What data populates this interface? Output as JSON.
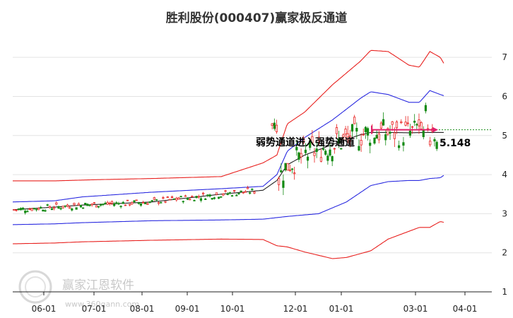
{
  "chart_data": {
    "type": "candlestick",
    "title": "胜利股份(000407)赢家极反通道",
    "x_labels": [
      "06-01",
      "07-01",
      "08-01",
      "09-01",
      "10-01",
      "12-01",
      "01-01",
      "03-01",
      "04-01"
    ],
    "y_ticks": [
      1,
      2,
      3,
      4,
      5,
      6,
      7
    ],
    "ylim": [
      1,
      7.6
    ],
    "grid": "horizontal",
    "annotation": "弱势通道进入强势通道",
    "price_label": "5.148",
    "reference_price": 5.148,
    "colors": {
      "upper_band": "#e8201e",
      "middle_upper_band": "#2a2ae0",
      "center_line": "#222222",
      "middle_lower_band": "#2a2ae0",
      "lower_band": "#e8201e",
      "up_candle": "#e8201e",
      "down_candle": "#138a13",
      "reference_line": "#1a8f1a",
      "annotation_arrow": "#e0206a"
    },
    "series": [
      {
        "key": "upper",
        "points": [
          [
            0,
            3.84
          ],
          [
            60,
            3.84
          ],
          [
            120,
            3.87
          ],
          [
            200,
            3.9
          ],
          [
            300,
            3.95
          ],
          [
            360,
            4.3
          ],
          [
            380,
            4.5
          ],
          [
            395,
            5.3
          ],
          [
            420,
            5.6
          ],
          [
            460,
            6.3
          ],
          [
            500,
            6.9
          ],
          [
            515,
            7.18
          ],
          [
            540,
            7.15
          ],
          [
            570,
            6.8
          ],
          [
            585,
            6.75
          ],
          [
            600,
            7.15
          ],
          [
            615,
            7.0
          ],
          [
            620,
            6.85
          ]
        ]
      },
      {
        "key": "mid_upper",
        "points": [
          [
            0,
            3.3
          ],
          [
            60,
            3.33
          ],
          [
            100,
            3.43
          ],
          [
            200,
            3.55
          ],
          [
            300,
            3.64
          ],
          [
            360,
            3.7
          ],
          [
            380,
            4.0
          ],
          [
            395,
            4.6
          ],
          [
            420,
            4.95
          ],
          [
            460,
            5.4
          ],
          [
            500,
            5.95
          ],
          [
            515,
            6.12
          ],
          [
            540,
            6.05
          ],
          [
            570,
            5.85
          ],
          [
            585,
            5.85
          ],
          [
            600,
            6.15
          ],
          [
            615,
            6.05
          ],
          [
            620,
            6.02
          ]
        ]
      },
      {
        "key": "center",
        "points": [
          [
            0,
            3.1
          ],
          [
            60,
            3.17
          ],
          [
            100,
            3.22
          ],
          [
            200,
            3.3
          ],
          [
            250,
            3.4
          ],
          [
            300,
            3.5
          ],
          [
            360,
            3.6
          ],
          [
            380,
            3.85
          ],
          [
            395,
            4.25
          ],
          [
            420,
            4.5
          ],
          [
            460,
            4.77
          ],
          [
            500,
            5.02
          ],
          [
            515,
            5.08
          ],
          [
            540,
            5.08
          ],
          [
            570,
            5.07
          ],
          [
            600,
            5.08
          ],
          [
            620,
            5.08
          ]
        ]
      },
      {
        "key": "mid_lower",
        "points": [
          [
            0,
            2.72
          ],
          [
            60,
            2.74
          ],
          [
            100,
            2.77
          ],
          [
            200,
            2.82
          ],
          [
            300,
            2.84
          ],
          [
            360,
            2.86
          ],
          [
            380,
            2.9
          ],
          [
            395,
            2.93
          ],
          [
            440,
            3.0
          ],
          [
            480,
            3.3
          ],
          [
            515,
            3.72
          ],
          [
            540,
            3.82
          ],
          [
            570,
            3.85
          ],
          [
            585,
            3.85
          ],
          [
            600,
            3.9
          ],
          [
            615,
            3.92
          ],
          [
            620,
            3.98
          ]
        ]
      },
      {
        "key": "lower",
        "points": [
          [
            0,
            2.23
          ],
          [
            60,
            2.25
          ],
          [
            100,
            2.28
          ],
          [
            200,
            2.32
          ],
          [
            300,
            2.35
          ],
          [
            360,
            2.34
          ],
          [
            380,
            2.18
          ],
          [
            395,
            2.15
          ],
          [
            420,
            2.02
          ],
          [
            460,
            1.85
          ],
          [
            480,
            1.88
          ],
          [
            515,
            2.05
          ],
          [
            540,
            2.35
          ],
          [
            570,
            2.55
          ],
          [
            585,
            2.65
          ],
          [
            600,
            2.65
          ],
          [
            615,
            2.8
          ],
          [
            620,
            2.78
          ]
        ]
      }
    ]
  }
}
